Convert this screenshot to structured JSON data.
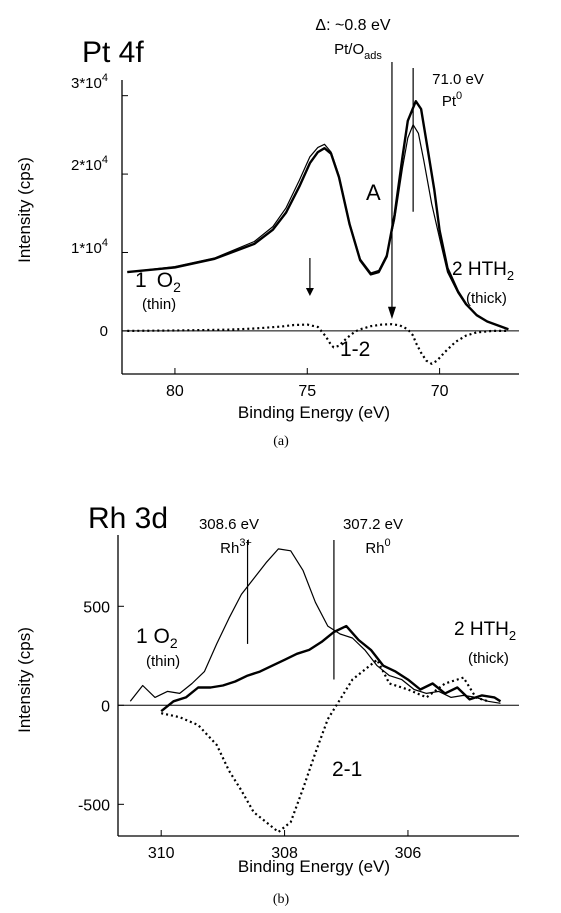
{
  "chart_data": [
    {
      "id": "a",
      "type": "line",
      "caption": "(a)",
      "title": "Pt 4f",
      "xlabel": "Binding Energy (eV)",
      "ylabel": "Intensity (cps)",
      "xlim": [
        82,
        67
      ],
      "ylim": [
        -5500,
        32000
      ],
      "xticks": [
        80,
        75,
        70
      ],
      "yticks": [
        {
          "value": 0,
          "label": "0"
        },
        {
          "value": 10000,
          "label": "1*10^4"
        },
        {
          "value": 20000,
          "label": "2*10^4"
        },
        {
          "value": 30000,
          "label": "3*10^4"
        }
      ],
      "series": [
        {
          "label_main": "1 O₂",
          "label_sub": "(thin)",
          "x": [
            81.8,
            80,
            78.5,
            77,
            76.3,
            75.8,
            75.3,
            74.9,
            74.6,
            74.35,
            74.1,
            73.8,
            73.4,
            73,
            72.6,
            72.3,
            72,
            71.7,
            71.4,
            71.2,
            71,
            70.8,
            70.6,
            70.3,
            70,
            69.7,
            69.3,
            69,
            68.6,
            68.2,
            67.8,
            67.4
          ],
          "y": [
            7500,
            8200,
            9300,
            11400,
            13300,
            15700,
            19200,
            22200,
            23400,
            23800,
            22800,
            19800,
            13800,
            9200,
            7400,
            7700,
            9700,
            14200,
            20800,
            24600,
            26300,
            25200,
            21800,
            16200,
            11800,
            7500,
            4800,
            3300,
            2000,
            1200,
            700,
            200
          ]
        },
        {
          "label_main": "2 HTH₂",
          "label_sub": "(thick)",
          "x": [
            81.8,
            80,
            78.5,
            77,
            76.3,
            75.8,
            75.3,
            74.9,
            74.6,
            74.35,
            74.1,
            73.8,
            73.4,
            73,
            72.6,
            72.3,
            72,
            71.7,
            71.4,
            71.2,
            70.9,
            70.7,
            70.5,
            70.2,
            70,
            69.7,
            69.3,
            69,
            68.6,
            68.2,
            67.8,
            67.4
          ],
          "y": [
            7500,
            8100,
            9200,
            11100,
            12900,
            15100,
            18400,
            21400,
            22800,
            23300,
            22600,
            19600,
            13600,
            9000,
            7200,
            7500,
            9500,
            14800,
            22200,
            26800,
            29300,
            28300,
            24200,
            18000,
            12800,
            8000,
            5000,
            3400,
            2000,
            1200,
            700,
            200
          ]
        },
        {
          "label_main": "1-2",
          "label_sub": "",
          "x": [
            81.8,
            80,
            78,
            77,
            76,
            75.5,
            75,
            74.6,
            74.3,
            74.1,
            74,
            73.8,
            73.5,
            73.2,
            73,
            72.6,
            72.2,
            71.8,
            71.5,
            71.2,
            71,
            70.9,
            70.7,
            70.5,
            70.3,
            70.1,
            69.8,
            69.4,
            69,
            68.6,
            68,
            67.4
          ],
          "y": [
            0,
            50,
            150,
            300,
            550,
            750,
            800,
            500,
            -700,
            -1800,
            -2100,
            -1900,
            -900,
            -100,
            200,
            600,
            800,
            850,
            700,
            200,
            -600,
            -1500,
            -2800,
            -3800,
            -4200,
            -3800,
            -2700,
            -1400,
            -600,
            -200,
            0,
            0
          ]
        }
      ],
      "annotations": [
        {
          "text": "Δ: ~0.8 eV"
        },
        {
          "text": "Pt/O",
          "sub": "ads"
        },
        {
          "text": "71.0 eV"
        },
        {
          "text": "Pt",
          "sup": "0"
        },
        {
          "text": "A"
        }
      ]
    },
    {
      "id": "b",
      "type": "line",
      "caption": "(b)",
      "title": "Rh 3d",
      "xlabel": "Binding Energy (eV)",
      "ylabel": "Intensity (cps)",
      "xlim": [
        310.7,
        304.2
      ],
      "ylim": [
        -660,
        860
      ],
      "xticks": [
        310,
        308,
        306
      ],
      "yticks": [
        {
          "value": -500,
          "label": "-500"
        },
        {
          "value": 0,
          "label": "0"
        },
        {
          "value": 500,
          "label": "500"
        }
      ],
      "series": [
        {
          "label_main": "1 O₂",
          "label_sub": "(thin)",
          "x": [
            310.5,
            310.3,
            310.1,
            309.9,
            309.7,
            309.5,
            309.3,
            309.1,
            308.9,
            308.7,
            308.5,
            308.3,
            308.1,
            307.9,
            307.7,
            307.5,
            307.3,
            307.1,
            306.9,
            306.7,
            306.5,
            306.3,
            306.1,
            305.9,
            305.7,
            305.5,
            305.3,
            305.1,
            304.9,
            304.7,
            304.5
          ],
          "y": [
            20,
            100,
            40,
            70,
            60,
            110,
            170,
            310,
            440,
            560,
            640,
            720,
            790,
            780,
            680,
            520,
            400,
            360,
            340,
            280,
            200,
            150,
            130,
            80,
            60,
            70,
            40,
            50,
            40,
            20,
            10
          ]
        },
        {
          "label_main": "2 HTH₂",
          "label_sub": "(thick)",
          "x": [
            310,
            309.8,
            309.6,
            309.4,
            309.2,
            309,
            308.8,
            308.6,
            308.4,
            308.2,
            308,
            307.8,
            307.6,
            307.4,
            307.2,
            307,
            306.8,
            306.6,
            306.4,
            306.2,
            306,
            305.8,
            305.6,
            305.4,
            305.2,
            305,
            304.8,
            304.6,
            304.5
          ],
          "y": [
            -30,
            20,
            40,
            90,
            90,
            100,
            120,
            150,
            170,
            200,
            230,
            260,
            280,
            320,
            370,
            400,
            330,
            280,
            200,
            170,
            130,
            80,
            110,
            60,
            90,
            30,
            50,
            40,
            20
          ]
        },
        {
          "label_main": "2-1",
          "label_sub": "",
          "x": [
            310,
            309.7,
            309.4,
            309.1,
            308.9,
            308.7,
            308.5,
            308.3,
            308.1,
            307.9,
            307.7,
            307.5,
            307.3,
            307.1,
            306.9,
            306.7,
            306.5,
            306.3,
            306,
            305.7,
            305.4,
            305.1,
            304.9,
            304.7
          ],
          "y": [
            -40,
            -60,
            -100,
            -200,
            -330,
            -430,
            -540,
            -590,
            -640,
            -590,
            -420,
            -240,
            -70,
            30,
            130,
            180,
            230,
            110,
            80,
            40,
            110,
            140,
            40,
            20
          ]
        }
      ],
      "annotations": [
        {
          "text": "308.6 eV"
        },
        {
          "text": "Rh",
          "sup": "3+"
        },
        {
          "text": "307.2 eV"
        },
        {
          "text": "Rh",
          "sup": "0"
        }
      ]
    }
  ]
}
